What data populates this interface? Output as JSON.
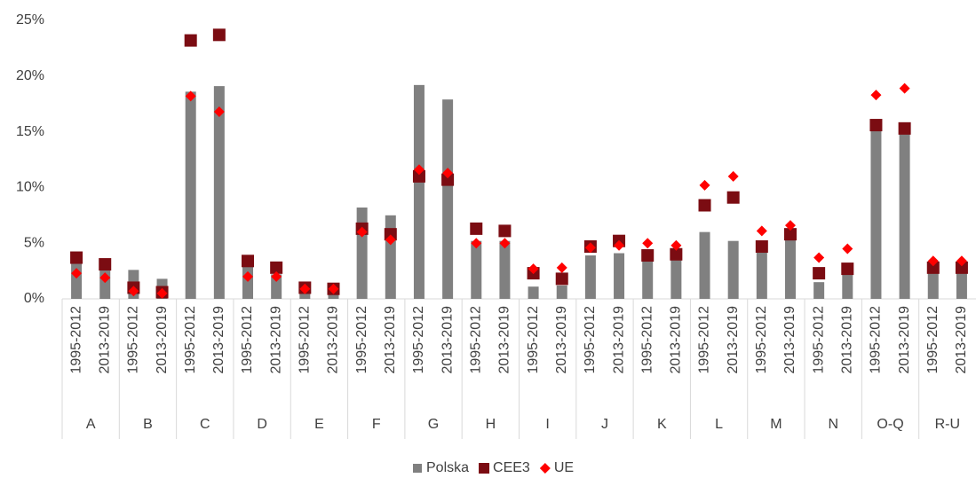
{
  "chart_data": {
    "type": "bar",
    "categories": [
      "1995-2012",
      "2013-2019",
      "1995-2012",
      "2013-2019",
      "1995-2012",
      "2013-2019",
      "1995-2012",
      "2013-2019",
      "1995-2012",
      "2013-2019",
      "1995-2012",
      "2013-2019",
      "1995-2012",
      "2013-2019",
      "1995-2012",
      "2013-2019",
      "1995-2012",
      "2013-2019",
      "1995-2012",
      "2013-2019",
      "1995-2012",
      "2013-2019",
      "1995-2012",
      "2013-2019",
      "1995-2012",
      "2013-2019",
      "1995-2012",
      "2013-2019",
      "1995-2012",
      "2013-2019",
      "1995-2012",
      "2013-2019"
    ],
    "groups": [
      "A",
      "B",
      "C",
      "D",
      "E",
      "F",
      "G",
      "H",
      "I",
      "J",
      "K",
      "L",
      "M",
      "N",
      "O-Q",
      "R-U"
    ],
    "series": [
      {
        "name": "Polska",
        "color": "#808080",
        "marker": "bar",
        "values": [
          3.2,
          2.6,
          2.6,
          1.8,
          18.6,
          19.1,
          2.9,
          2.2,
          0.8,
          0.7,
          8.2,
          7.5,
          19.2,
          17.9,
          5.2,
          5.2,
          1.1,
          1.2,
          3.9,
          4.1,
          3.6,
          3.5,
          6.0,
          5.2,
          4.5,
          5.3,
          1.5,
          2.3,
          15.2,
          15.0,
          2.3,
          2.3
        ]
      },
      {
        "name": "CEE3",
        "color": "#7b0c12",
        "marker": "square",
        "values": [
          3.7,
          3.1,
          1.0,
          0.6,
          23.2,
          23.7,
          3.4,
          2.8,
          1.0,
          0.9,
          6.3,
          5.8,
          11.0,
          10.7,
          6.3,
          6.1,
          2.3,
          1.8,
          4.7,
          5.2,
          3.9,
          4.0,
          8.4,
          9.1,
          4.7,
          5.8,
          2.3,
          2.7,
          15.6,
          15.3,
          2.8,
          2.8
        ]
      },
      {
        "name": "UE",
        "color": "#ff0000",
        "marker": "diamond",
        "values": [
          2.3,
          1.9,
          0.7,
          0.5,
          18.2,
          16.8,
          2.0,
          2.0,
          0.9,
          0.9,
          6.0,
          5.3,
          11.6,
          11.3,
          5.0,
          5.0,
          2.7,
          2.8,
          4.6,
          4.8,
          5.0,
          4.8,
          10.2,
          11.0,
          6.1,
          6.6,
          3.7,
          4.5,
          18.3,
          18.9,
          3.4,
          3.4
        ]
      }
    ],
    "ylim": [
      0,
      25
    ],
    "yticks": [
      {
        "value": 0,
        "label": "0%"
      },
      {
        "value": 5,
        "label": "5%"
      },
      {
        "value": 10,
        "label": "10%"
      },
      {
        "value": 15,
        "label": "15%"
      },
      {
        "value": 20,
        "label": "20%"
      },
      {
        "value": 25,
        "label": "25%"
      }
    ],
    "grid": false,
    "legend": "bottom"
  }
}
